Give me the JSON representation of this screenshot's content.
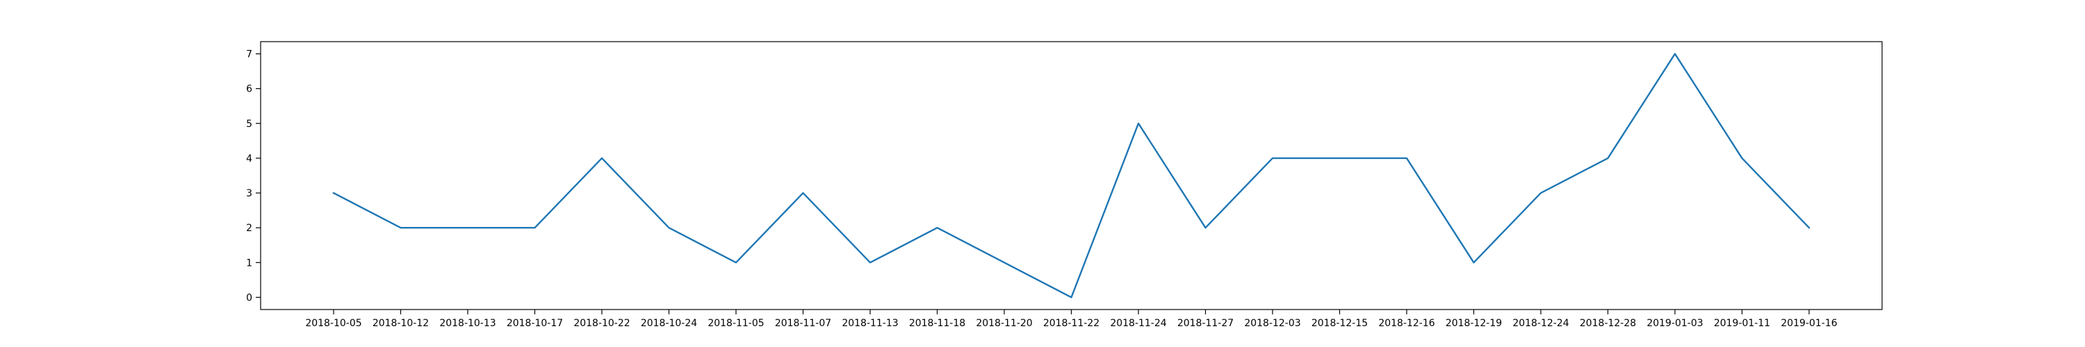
{
  "chart_data": {
    "type": "line",
    "title": "",
    "xlabel": "",
    "ylabel": "",
    "categories": [
      "2018-10-05",
      "2018-10-12",
      "2018-10-13",
      "2018-10-17",
      "2018-10-22",
      "2018-10-24",
      "2018-11-05",
      "2018-11-07",
      "2018-11-13",
      "2018-11-18",
      "2018-11-20",
      "2018-11-22",
      "2018-11-24",
      "2018-11-27",
      "2018-12-03",
      "2018-12-15",
      "2018-12-16",
      "2018-12-19",
      "2018-12-24",
      "2018-12-28",
      "2019-01-03",
      "2019-01-11",
      "2019-01-16"
    ],
    "series": [
      {
        "values": [
          3,
          2,
          2,
          2,
          4,
          2,
          1,
          3,
          1,
          2,
          1,
          0,
          5,
          2,
          4,
          4,
          4,
          1,
          3,
          4,
          7,
          4,
          2
        ],
        "color": "#1f77b4"
      }
    ],
    "ylim": [
      -0.35,
      7.35
    ],
    "yticks": [
      0,
      1,
      2,
      3,
      4,
      5,
      6,
      7
    ],
    "grid": false,
    "legend": "none"
  }
}
